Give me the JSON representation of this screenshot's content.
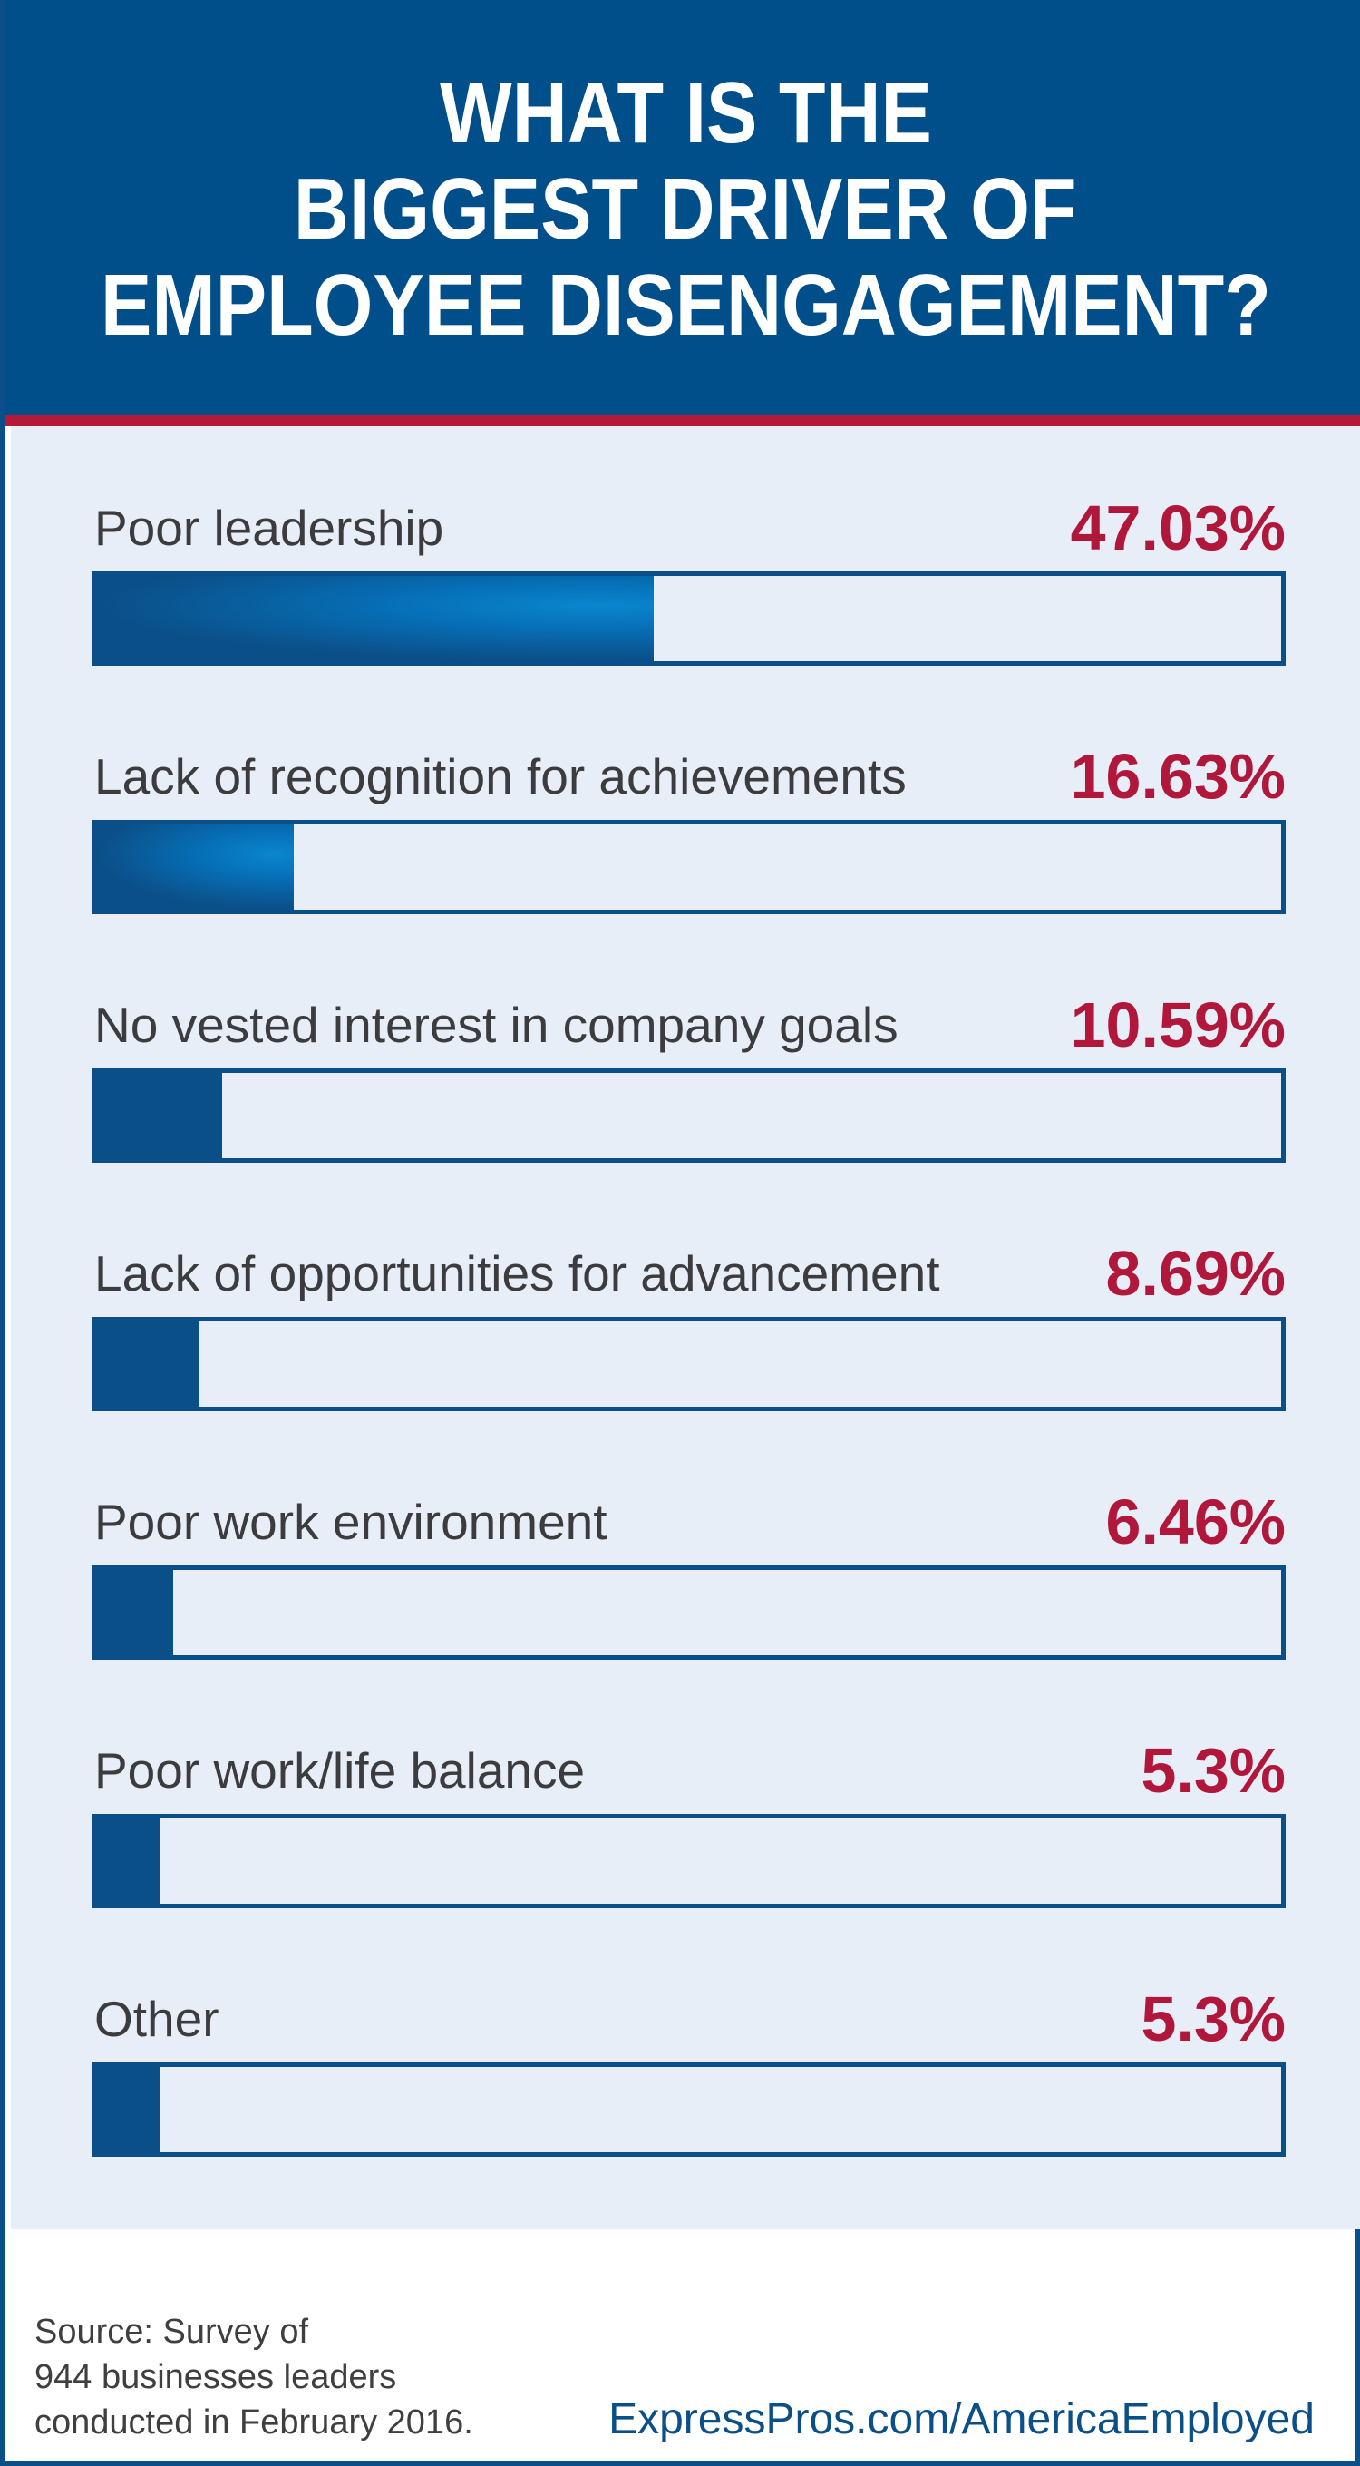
{
  "title_lines": [
    "WHAT IS THE",
    "BIGGEST DRIVER OF",
    "EMPLOYEE DISENGAGEMENT?"
  ],
  "colors": {
    "header_bg": "#014f8a",
    "accent_red": "#b0173b",
    "bar_blue": "#0b4f88",
    "panel_bg": "#e7eef8"
  },
  "chart_data": {
    "type": "bar",
    "orientation": "horizontal",
    "title": "WHAT IS THE BIGGEST DRIVER OF EMPLOYEE DISENGAGEMENT?",
    "xlim": [
      0,
      100
    ],
    "grid": false,
    "categories": [
      "Poor leadership",
      "Lack of recognition for achievements",
      "No vested interest in company goals",
      "Lack of opportunities for advancement",
      "Poor work environment",
      "Poor work/life balance",
      "Other"
    ],
    "values": [
      47.03,
      16.63,
      10.59,
      8.69,
      6.46,
      5.3,
      5.3
    ],
    "value_labels": [
      "47.03%",
      "16.63%",
      "10.59%",
      "8.69%",
      "6.46%",
      "5.3%",
      "5.3%"
    ]
  },
  "footer": {
    "source_lines": [
      "Source: Survey of",
      "944 businesses leaders",
      "conducted in February 2016."
    ],
    "link": "ExpressPros.com/AmericaEmployed"
  }
}
